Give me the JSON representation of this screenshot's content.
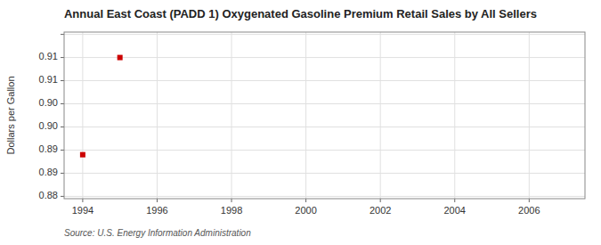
{
  "chart_data": {
    "type": "scatter",
    "title": "Annual East Coast (PADD 1) Oxygenated Gasoline Premium Retail Sales by All Sellers",
    "ylabel": "Dollars per Gallon",
    "annotations": [
      "Source: U.S. Energy Information Administration"
    ],
    "x": [
      1994,
      1995
    ],
    "values": [
      0.889,
      0.91
    ],
    "color": "#cc0000",
    "marker": "square",
    "xlim": [
      1993.5,
      2007.5
    ],
    "ylim": [
      0.8795,
      0.9155
    ],
    "xticks": [
      1994,
      1996,
      1998,
      2000,
      2002,
      2004,
      2006
    ],
    "yticks": [
      0.88,
      {
        "value": 0.885,
        "label": "0.89"
      },
      0.89,
      {
        "value": 0.895,
        "label": "0.90"
      },
      {
        "value": 0.9,
        "label": "0.90"
      },
      {
        "value": 0.905,
        "label": "0.91"
      },
      0.91,
      {
        "value": 0.915,
        "label": null
      }
    ],
    "grid": true
  }
}
